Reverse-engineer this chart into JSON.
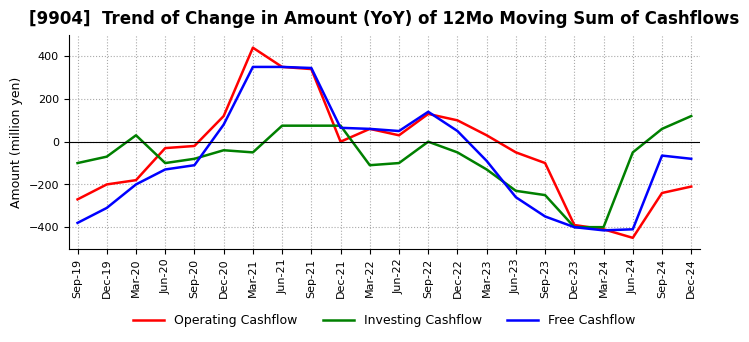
{
  "title": "[9904]  Trend of Change in Amount (YoY) of 12Mo Moving Sum of Cashflows",
  "ylabel": "Amount (million yen)",
  "x_labels": [
    "Sep-19",
    "Dec-19",
    "Mar-20",
    "Jun-20",
    "Sep-20",
    "Dec-20",
    "Mar-21",
    "Jun-21",
    "Sep-21",
    "Dec-21",
    "Mar-22",
    "Jun-22",
    "Sep-22",
    "Dec-22",
    "Mar-23",
    "Jun-23",
    "Sep-23",
    "Dec-23",
    "Mar-24",
    "Jun-24",
    "Sep-24",
    "Dec-24"
  ],
  "operating": [
    -270,
    -200,
    -180,
    -30,
    -20,
    120,
    440,
    350,
    340,
    0,
    60,
    30,
    130,
    100,
    30,
    -50,
    -100,
    -390,
    -410,
    -450,
    -240,
    -210
  ],
  "investing": [
    -100,
    -70,
    30,
    -100,
    -80,
    -40,
    -50,
    75,
    75,
    75,
    -110,
    -100,
    0,
    -50,
    -130,
    -230,
    -250,
    -400,
    -400,
    -50,
    60,
    120
  ],
  "free": [
    -380,
    -310,
    -200,
    -130,
    -110,
    80,
    350,
    350,
    345,
    65,
    60,
    50,
    140,
    50,
    -90,
    -260,
    -350,
    -400,
    -415,
    -410,
    -65,
    -80
  ],
  "ylim": [
    -500,
    500
  ],
  "yticks": [
    -400,
    -200,
    0,
    200,
    400
  ],
  "operating_color": "#ff0000",
  "investing_color": "#008000",
  "free_color": "#0000ff",
  "background_color": "#ffffff",
  "grid_color": "#aaaaaa",
  "title_fontsize": 12,
  "axis_fontsize": 9,
  "tick_fontsize": 8,
  "legend_fontsize": 9
}
